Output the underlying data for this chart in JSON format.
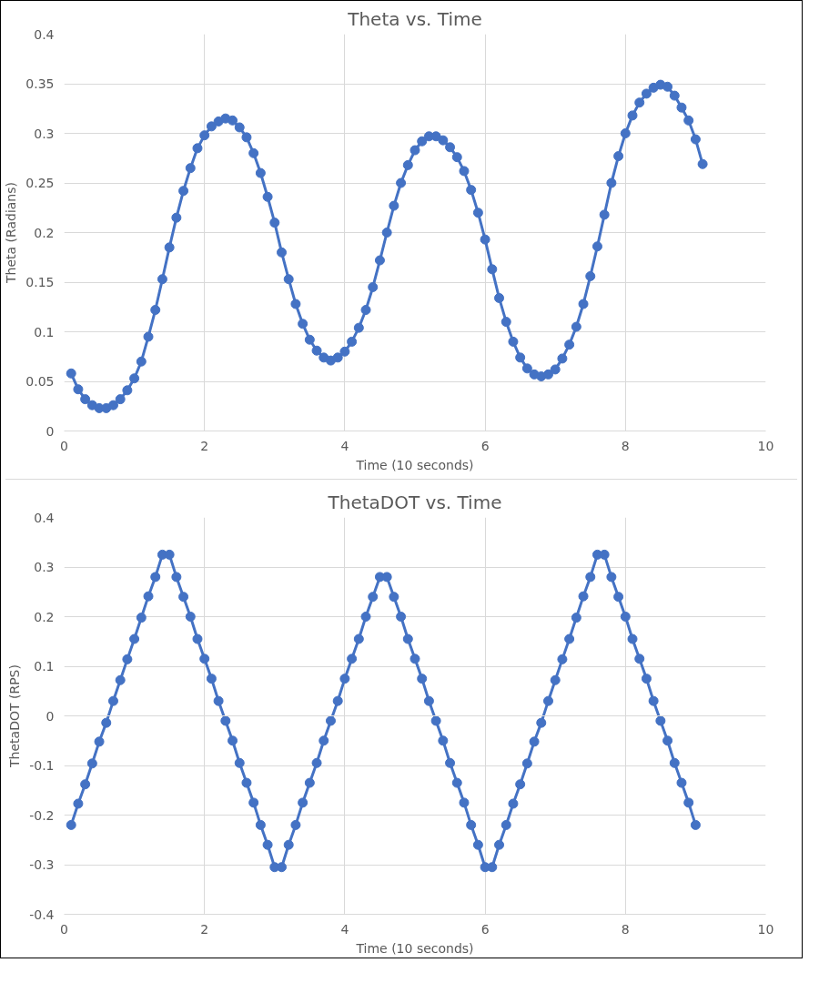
{
  "chart_data": [
    {
      "type": "line",
      "title": "Theta vs. Time",
      "xlabel": "Time (10 seconds)",
      "ylabel": "Theta (Radians)",
      "marker": "circle",
      "grid": true,
      "line_style": "solid",
      "xlim": [
        0,
        10
      ],
      "xticks": [
        0,
        2,
        4,
        6,
        8,
        10
      ],
      "ylim": [
        0,
        0.4
      ],
      "yticks": [
        0,
        0.05,
        0.1,
        0.15,
        0.2,
        0.25,
        0.3,
        0.35,
        0.4
      ],
      "x": [
        0.1,
        0.2,
        0.3,
        0.4,
        0.5,
        0.6,
        0.7,
        0.8,
        0.9,
        1.0,
        1.1,
        1.2,
        1.3,
        1.4,
        1.5,
        1.6,
        1.7,
        1.8,
        1.9,
        2.0,
        2.1,
        2.2,
        2.3,
        2.4,
        2.5,
        2.6,
        2.7,
        2.8,
        2.9,
        3.0,
        3.1,
        3.2,
        3.3,
        3.4,
        3.5,
        3.6,
        3.7,
        3.8,
        3.9,
        4.0,
        4.1,
        4.2,
        4.3,
        4.4,
        4.5,
        4.6,
        4.7,
        4.8,
        4.9,
        5.0,
        5.1,
        5.2,
        5.3,
        5.4,
        5.5,
        5.6,
        5.7,
        5.8,
        5.9,
        6.0,
        6.1,
        6.2,
        6.3,
        6.4,
        6.5,
        6.6,
        6.7,
        6.8,
        6.9,
        7.0,
        7.1,
        7.2,
        7.3,
        7.4,
        7.5,
        7.6,
        7.7,
        7.8,
        7.9,
        8.0,
        8.1,
        8.2,
        8.3,
        8.4,
        8.5,
        8.6,
        8.7,
        8.8,
        8.9,
        9.0,
        9.1
      ],
      "series": [
        {
          "color": "#4472c4",
          "values": [
            0.058,
            0.042,
            0.032,
            0.026,
            0.023,
            0.023,
            0.026,
            0.032,
            0.041,
            0.053,
            0.07,
            0.095,
            0.122,
            0.153,
            0.185,
            0.215,
            0.242,
            0.265,
            0.285,
            0.298,
            0.307,
            0.312,
            0.315,
            0.313,
            0.306,
            0.296,
            0.28,
            0.26,
            0.236,
            0.21,
            0.18,
            0.153,
            0.128,
            0.108,
            0.092,
            0.081,
            0.074,
            0.071,
            0.074,
            0.08,
            0.09,
            0.104,
            0.122,
            0.145,
            0.172,
            0.2,
            0.227,
            0.25,
            0.268,
            0.283,
            0.292,
            0.297,
            0.297,
            0.293,
            0.286,
            0.276,
            0.262,
            0.243,
            0.22,
            0.193,
            0.163,
            0.134,
            0.11,
            0.09,
            0.074,
            0.063,
            0.057,
            0.055,
            0.057,
            0.062,
            0.073,
            0.087,
            0.105,
            0.128,
            0.156,
            0.186,
            0.218,
            0.25,
            0.277,
            0.3,
            0.318,
            0.331,
            0.34,
            0.346,
            0.349,
            0.347,
            0.338,
            0.326,
            0.313,
            0.294,
            0.269
          ]
        }
      ]
    },
    {
      "type": "line",
      "title": "ThetaDOT vs. Time",
      "xlabel": "Time (10 seconds)",
      "ylabel": "ThetaDOT (RPS)",
      "marker": "circle",
      "grid": true,
      "line_style": "solid",
      "xlim": [
        0,
        10
      ],
      "xticks": [
        0,
        2,
        4,
        6,
        8,
        10
      ],
      "ylim": [
        -0.4,
        0.4
      ],
      "yticks": [
        -0.4,
        -0.3,
        -0.2,
        -0.1,
        0,
        0.1,
        0.2,
        0.3,
        0.4
      ],
      "x": [
        0.1,
        0.2,
        0.3,
        0.4,
        0.5,
        0.6,
        0.7,
        0.8,
        0.9,
        1.0,
        1.1,
        1.2,
        1.3,
        1.4,
        1.5,
        1.6,
        1.7,
        1.8,
        1.9,
        2.0,
        2.1,
        2.2,
        2.3,
        2.4,
        2.5,
        2.6,
        2.7,
        2.8,
        2.9,
        3.0,
        3.1,
        3.2,
        3.3,
        3.4,
        3.5,
        3.6,
        3.7,
        3.8,
        3.9,
        4.0,
        4.1,
        4.2,
        4.3,
        4.4,
        4.5,
        4.6,
        4.7,
        4.8,
        4.9,
        5.0,
        5.1,
        5.2,
        5.3,
        5.4,
        5.5,
        5.6,
        5.7,
        5.8,
        5.9,
        6.0,
        6.1,
        6.2,
        6.3,
        6.4,
        6.5,
        6.6,
        6.7,
        6.8,
        6.9,
        7.0,
        7.1,
        7.2,
        7.3,
        7.4,
        7.5,
        7.6,
        7.7,
        7.8,
        7.9,
        8.0,
        8.1,
        8.2,
        8.3,
        8.4,
        8.5,
        8.6,
        8.7,
        8.8,
        8.9,
        9.0
      ],
      "series": [
        {
          "color": "#4472c4",
          "values": [
            -0.22,
            -0.177,
            -0.138,
            -0.096,
            -0.052,
            -0.014,
            0.03,
            0.072,
            0.114,
            0.155,
            0.198,
            0.241,
            0.28,
            0.325,
            0.325,
            0.28,
            0.24,
            0.2,
            0.155,
            0.115,
            0.075,
            0.03,
            -0.01,
            -0.05,
            -0.095,
            -0.135,
            -0.175,
            -0.22,
            -0.26,
            -0.305,
            -0.305,
            -0.26,
            -0.22,
            -0.175,
            -0.135,
            -0.095,
            -0.05,
            -0.01,
            0.03,
            0.075,
            0.115,
            0.155,
            0.2,
            0.24,
            0.28,
            0.28,
            0.24,
            0.2,
            0.155,
            0.115,
            0.075,
            0.03,
            -0.01,
            -0.05,
            -0.095,
            -0.135,
            -0.175,
            -0.22,
            -0.26,
            -0.305,
            -0.305,
            -0.26,
            -0.22,
            -0.177,
            -0.138,
            -0.096,
            -0.052,
            -0.014,
            0.03,
            0.072,
            0.114,
            0.155,
            0.198,
            0.241,
            0.28,
            0.325,
            0.325,
            0.28,
            0.24,
            0.2,
            0.155,
            0.115,
            0.075,
            0.03,
            -0.01,
            -0.05,
            -0.095,
            -0.135,
            -0.175,
            -0.22
          ]
        }
      ]
    }
  ]
}
